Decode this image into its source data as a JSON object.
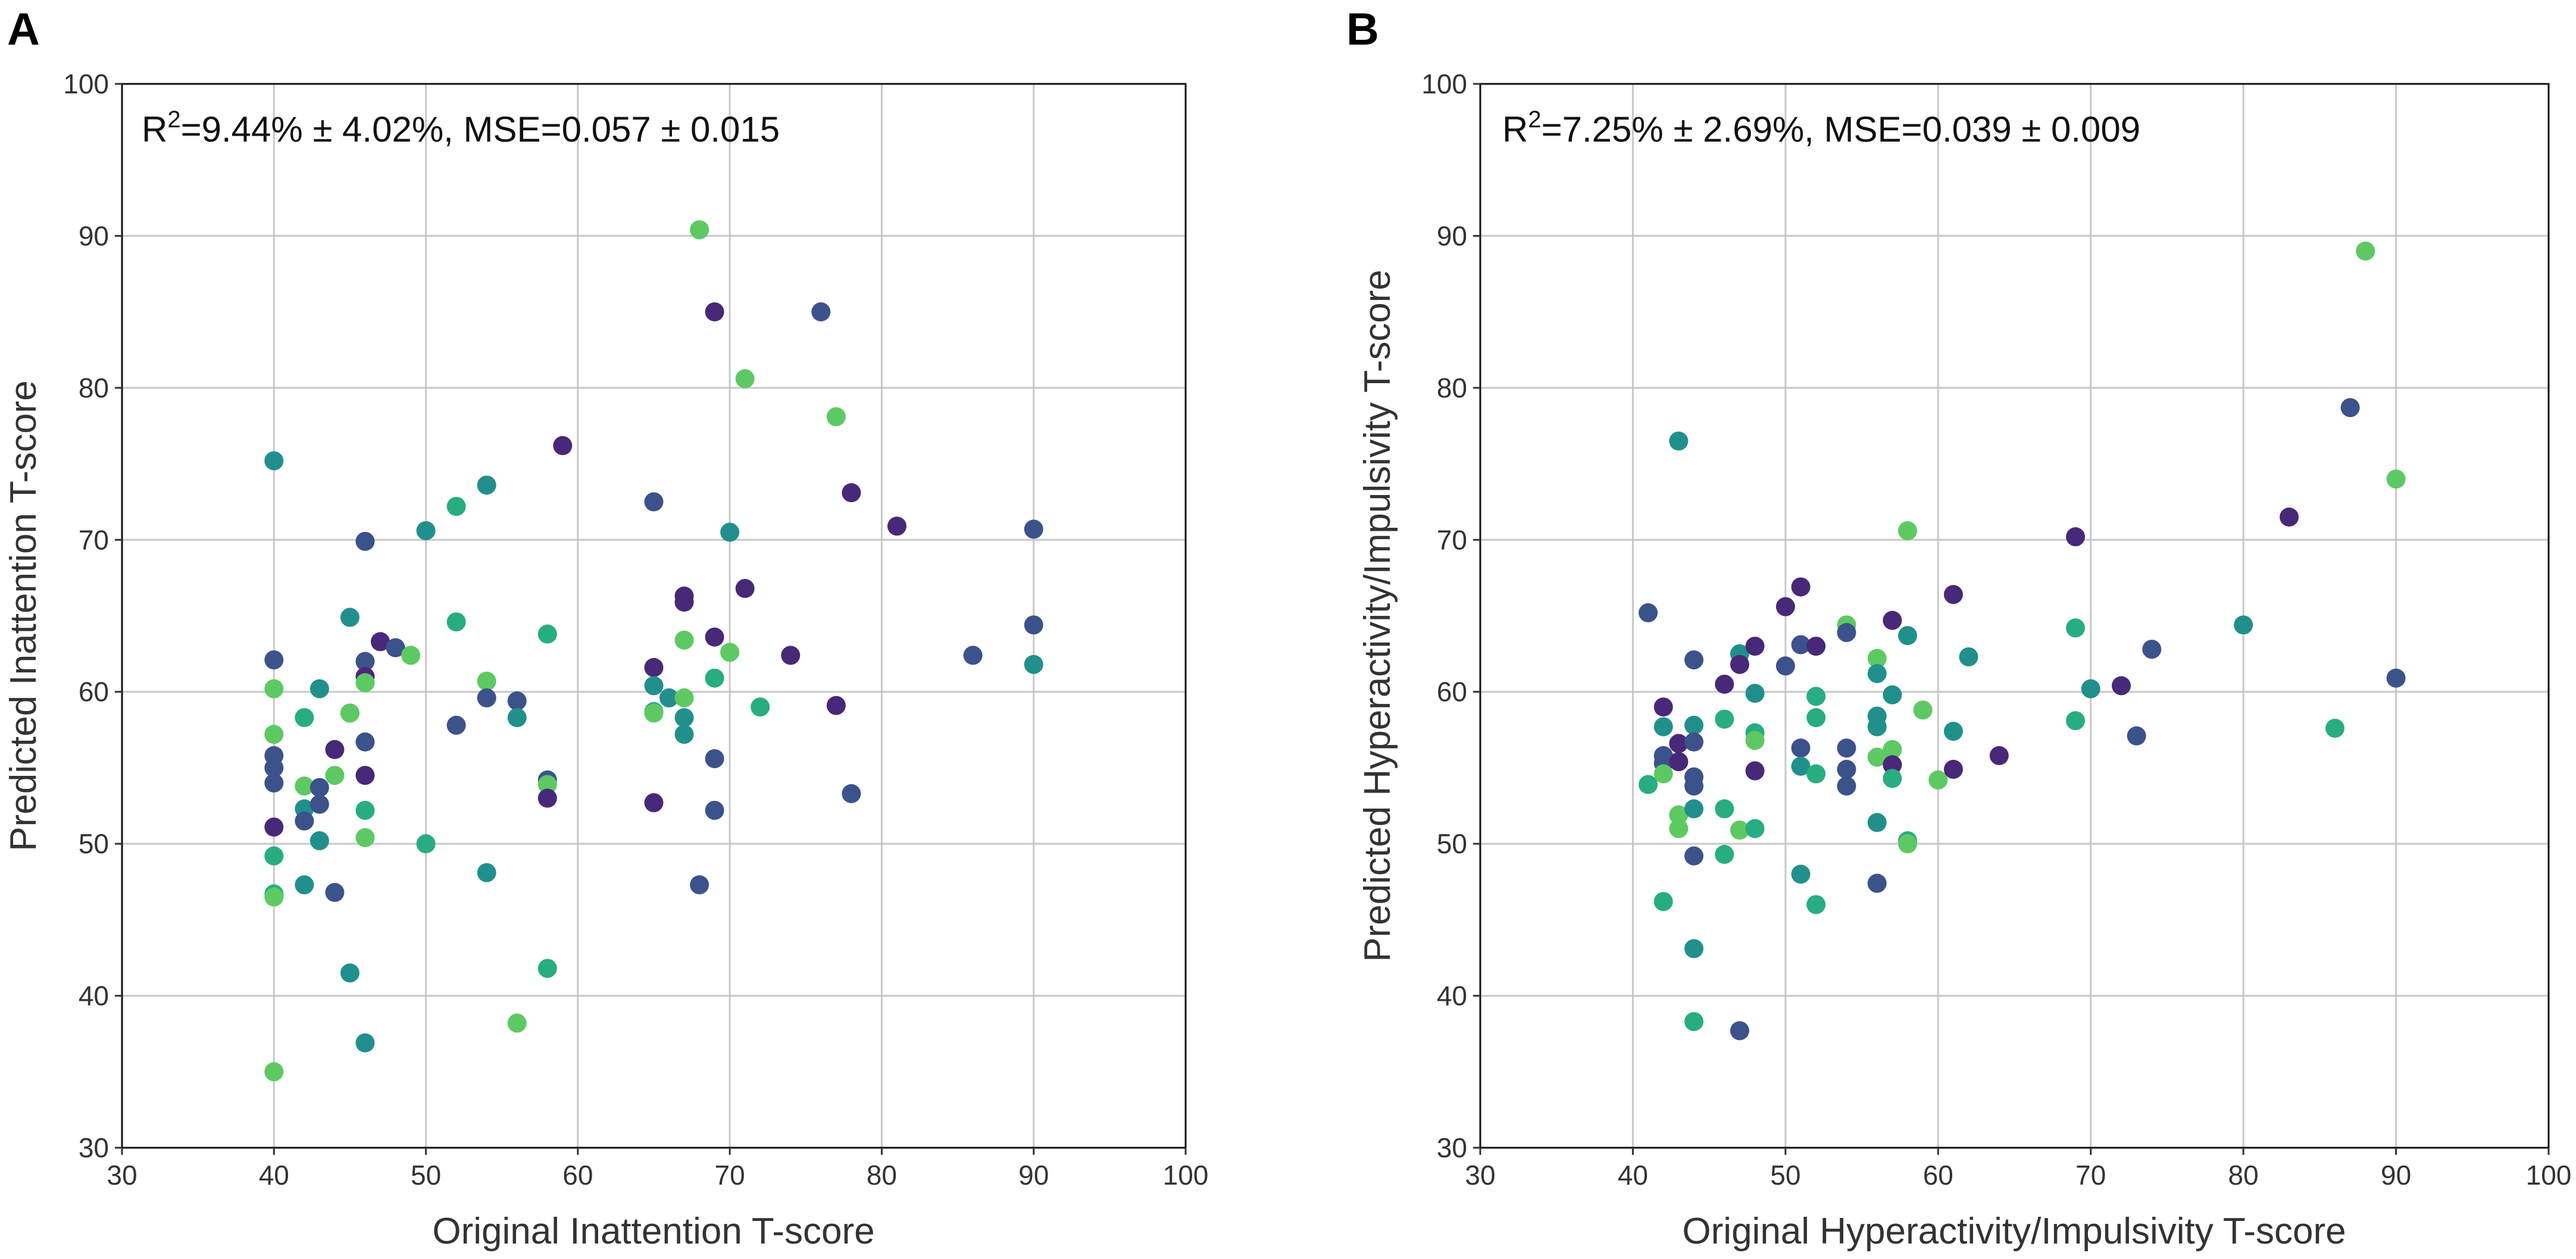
{
  "colors": {
    "c1": "#482878",
    "c2": "#3b528b",
    "c3": "#21908c",
    "c4": "#27ad81",
    "c5": "#5ec962",
    "grid": "#c8c8c8",
    "frame": "#111111"
  },
  "chart_data": [
    {
      "type": "scatter",
      "panel": "A",
      "title": "",
      "annotation": {
        "r2": "9.44% ± 4.02%",
        "mse": "0.057 ± 0.015"
      },
      "xlabel": "Original Inattention T-score",
      "ylabel": "Predicted Inattention T-score",
      "xlim": [
        30,
        100
      ],
      "ylim": [
        30,
        100
      ],
      "xticks": [
        30,
        40,
        50,
        60,
        70,
        80,
        90,
        100
      ],
      "yticks": [
        30,
        40,
        50,
        60,
        70,
        80,
        90,
        100
      ],
      "grid": true,
      "points": [
        [
          40,
          75.2,
          "c3"
        ],
        [
          40,
          62.1,
          "c2"
        ],
        [
          40,
          60.2,
          "c5"
        ],
        [
          40,
          57.2,
          "c5"
        ],
        [
          40,
          55.8,
          "c2"
        ],
        [
          40,
          55.0,
          "c2"
        ],
        [
          40,
          54.0,
          "c2"
        ],
        [
          40,
          51.1,
          "c1"
        ],
        [
          40,
          49.2,
          "c4"
        ],
        [
          40,
          46.7,
          "c4"
        ],
        [
          40,
          46.5,
          "c5"
        ],
        [
          40,
          35.0,
          "c5"
        ],
        [
          42,
          58.3,
          "c4"
        ],
        [
          42,
          53.8,
          "c5"
        ],
        [
          42,
          52.3,
          "c3"
        ],
        [
          42,
          51.5,
          "c2"
        ],
        [
          42,
          47.3,
          "c3"
        ],
        [
          43,
          60.2,
          "c3"
        ],
        [
          43,
          53.7,
          "c2"
        ],
        [
          43,
          52.6,
          "c2"
        ],
        [
          43,
          50.2,
          "c3"
        ],
        [
          44,
          56.2,
          "c1"
        ],
        [
          44,
          54.5,
          "c5"
        ],
        [
          44,
          46.8,
          "c2"
        ],
        [
          45,
          64.9,
          "c3"
        ],
        [
          45,
          58.6,
          "c4"
        ],
        [
          45,
          58.6,
          "c5"
        ],
        [
          45,
          41.5,
          "c3"
        ],
        [
          46,
          69.9,
          "c2"
        ],
        [
          46,
          62.0,
          "c2"
        ],
        [
          46,
          61.0,
          "c1"
        ],
        [
          46,
          60.6,
          "c5"
        ],
        [
          46,
          56.7,
          "c2"
        ],
        [
          46,
          54.5,
          "c1"
        ],
        [
          46,
          52.2,
          "c4"
        ],
        [
          46,
          50.4,
          "c5"
        ],
        [
          46,
          36.9,
          "c3"
        ],
        [
          47,
          63.3,
          "c1"
        ],
        [
          48,
          62.9,
          "c2"
        ],
        [
          49,
          62.4,
          "c5"
        ],
        [
          50,
          70.6,
          "c3"
        ],
        [
          50,
          50.0,
          "c4"
        ],
        [
          52,
          72.2,
          "c4"
        ],
        [
          52,
          64.6,
          "c4"
        ],
        [
          52,
          57.8,
          "c2"
        ],
        [
          54,
          73.6,
          "c3"
        ],
        [
          54,
          60.7,
          "c5"
        ],
        [
          54,
          59.6,
          "c2"
        ],
        [
          54,
          48.1,
          "c3"
        ],
        [
          56,
          59.4,
          "c2"
        ],
        [
          56,
          58.3,
          "c3"
        ],
        [
          56,
          38.2,
          "c5"
        ],
        [
          58,
          63.8,
          "c4"
        ],
        [
          58,
          54.2,
          "c2"
        ],
        [
          58,
          53.9,
          "c5"
        ],
        [
          58,
          53.0,
          "c1"
        ],
        [
          58,
          41.8,
          "c4"
        ],
        [
          59,
          76.2,
          "c1"
        ],
        [
          65,
          72.5,
          "c2"
        ],
        [
          65,
          61.6,
          "c1"
        ],
        [
          65,
          60.4,
          "c3"
        ],
        [
          65,
          58.7,
          "c4"
        ],
        [
          65,
          58.6,
          "c5"
        ],
        [
          65,
          52.7,
          "c1"
        ],
        [
          66,
          59.6,
          "c3"
        ],
        [
          67,
          66.3,
          "c1"
        ],
        [
          67,
          65.9,
          "c1"
        ],
        [
          67,
          63.4,
          "c5"
        ],
        [
          67,
          59.6,
          "c5"
        ],
        [
          67,
          58.3,
          "c3"
        ],
        [
          67,
          57.2,
          "c3"
        ],
        [
          68,
          90.4,
          "c5"
        ],
        [
          68,
          47.3,
          "c2"
        ],
        [
          69,
          85.0,
          "c1"
        ],
        [
          69,
          63.6,
          "c1"
        ],
        [
          69,
          60.9,
          "c4"
        ],
        [
          69,
          55.6,
          "c2"
        ],
        [
          69,
          52.2,
          "c2"
        ],
        [
          70,
          70.5,
          "c3"
        ],
        [
          70,
          62.6,
          "c5"
        ],
        [
          71,
          80.6,
          "c5"
        ],
        [
          71,
          66.8,
          "c1"
        ],
        [
          72,
          59.0,
          "c4"
        ],
        [
          74,
          62.4,
          "c1"
        ],
        [
          76,
          85.0,
          "c2"
        ],
        [
          77,
          78.1,
          "c5"
        ],
        [
          77,
          59.1,
          "c1"
        ],
        [
          78,
          73.1,
          "c1"
        ],
        [
          78,
          53.3,
          "c2"
        ],
        [
          81,
          70.9,
          "c1"
        ],
        [
          86,
          62.4,
          "c2"
        ],
        [
          90,
          70.7,
          "c2"
        ],
        [
          90,
          64.4,
          "c2"
        ],
        [
          90,
          61.8,
          "c3"
        ]
      ]
    },
    {
      "type": "scatter",
      "panel": "B",
      "title": "",
      "annotation": {
        "r2": "7.25% ± 2.69%",
        "mse": "0.039 ± 0.009"
      },
      "xlabel": "Original Hyperactivity/Impulsivity T-score",
      "ylabel": "Predicted Hyperactivity/Impulsivity T-score",
      "xlim": [
        30,
        100
      ],
      "ylim": [
        30,
        100
      ],
      "xticks": [
        30,
        40,
        50,
        60,
        70,
        80,
        90,
        100
      ],
      "yticks": [
        30,
        40,
        50,
        60,
        70,
        80,
        90,
        100
      ],
      "grid": true,
      "points": [
        [
          41,
          65.2,
          "c2"
        ],
        [
          41,
          53.9,
          "c4"
        ],
        [
          42,
          59.0,
          "c1"
        ],
        [
          42,
          57.7,
          "c3"
        ],
        [
          42,
          55.8,
          "c2"
        ],
        [
          42,
          55.3,
          "c2"
        ],
        [
          42,
          54.6,
          "c5"
        ],
        [
          42,
          46.2,
          "c4"
        ],
        [
          43,
          76.5,
          "c3"
        ],
        [
          43,
          56.6,
          "c1"
        ],
        [
          43,
          55.4,
          "c1"
        ],
        [
          43,
          51.9,
          "c5"
        ],
        [
          43,
          51.0,
          "c5"
        ],
        [
          44,
          62.1,
          "c2"
        ],
        [
          44,
          57.8,
          "c3"
        ],
        [
          44,
          56.7,
          "c2"
        ],
        [
          44,
          54.4,
          "c2"
        ],
        [
          44,
          53.8,
          "c2"
        ],
        [
          44,
          52.3,
          "c3"
        ],
        [
          44,
          49.2,
          "c2"
        ],
        [
          44,
          43.1,
          "c3"
        ],
        [
          44,
          38.3,
          "c4"
        ],
        [
          46,
          60.5,
          "c1"
        ],
        [
          46,
          58.2,
          "c4"
        ],
        [
          46,
          52.3,
          "c4"
        ],
        [
          46,
          49.3,
          "c4"
        ],
        [
          47,
          62.5,
          "c3"
        ],
        [
          47,
          61.8,
          "c1"
        ],
        [
          47,
          50.9,
          "c5"
        ],
        [
          47,
          37.7,
          "c2"
        ],
        [
          48,
          63.0,
          "c1"
        ],
        [
          48,
          59.9,
          "c3"
        ],
        [
          48,
          57.3,
          "c4"
        ],
        [
          48,
          56.8,
          "c5"
        ],
        [
          48,
          54.8,
          "c1"
        ],
        [
          48,
          51.0,
          "c4"
        ],
        [
          50,
          65.6,
          "c1"
        ],
        [
          50,
          61.7,
          "c2"
        ],
        [
          51,
          66.9,
          "c1"
        ],
        [
          51,
          63.1,
          "c2"
        ],
        [
          51,
          56.3,
          "c2"
        ],
        [
          51,
          55.1,
          "c3"
        ],
        [
          51,
          48.0,
          "c3"
        ],
        [
          52,
          63.0,
          "c1"
        ],
        [
          52,
          59.7,
          "c4"
        ],
        [
          52,
          58.3,
          "c4"
        ],
        [
          52,
          54.6,
          "c4"
        ],
        [
          52,
          46.0,
          "c4"
        ],
        [
          54,
          64.4,
          "c5"
        ],
        [
          54,
          63.9,
          "c2"
        ],
        [
          54,
          56.3,
          "c2"
        ],
        [
          54,
          54.9,
          "c2"
        ],
        [
          54,
          53.8,
          "c2"
        ],
        [
          56,
          62.2,
          "c5"
        ],
        [
          56,
          61.2,
          "c3"
        ],
        [
          56,
          58.4,
          "c3"
        ],
        [
          56,
          57.7,
          "c3"
        ],
        [
          56,
          55.7,
          "c5"
        ],
        [
          56,
          51.4,
          "c3"
        ],
        [
          56,
          47.4,
          "c2"
        ],
        [
          57,
          64.7,
          "c1"
        ],
        [
          57,
          59.8,
          "c3"
        ],
        [
          57,
          56.2,
          "c5"
        ],
        [
          57,
          55.2,
          "c1"
        ],
        [
          57,
          54.3,
          "c4"
        ],
        [
          58,
          70.6,
          "c5"
        ],
        [
          58,
          63.7,
          "c3"
        ],
        [
          58,
          50.2,
          "c4"
        ],
        [
          58,
          50.0,
          "c5"
        ],
        [
          59,
          58.8,
          "c5"
        ],
        [
          60,
          54.2,
          "c5"
        ],
        [
          61,
          66.4,
          "c1"
        ],
        [
          61,
          57.4,
          "c3"
        ],
        [
          61,
          54.9,
          "c1"
        ],
        [
          62,
          62.3,
          "c3"
        ],
        [
          64,
          55.8,
          "c1"
        ],
        [
          69,
          70.2,
          "c1"
        ],
        [
          69,
          64.2,
          "c4"
        ],
        [
          69,
          58.1,
          "c4"
        ],
        [
          70,
          60.2,
          "c3"
        ],
        [
          72,
          60.4,
          "c1"
        ],
        [
          73,
          57.1,
          "c2"
        ],
        [
          74,
          62.8,
          "c2"
        ],
        [
          80,
          64.4,
          "c3"
        ],
        [
          83,
          71.5,
          "c1"
        ],
        [
          86,
          57.6,
          "c4"
        ],
        [
          87,
          78.7,
          "c2"
        ],
        [
          88,
          89.0,
          "c5"
        ],
        [
          90,
          74.0,
          "c5"
        ],
        [
          90,
          60.9,
          "c2"
        ]
      ]
    }
  ]
}
